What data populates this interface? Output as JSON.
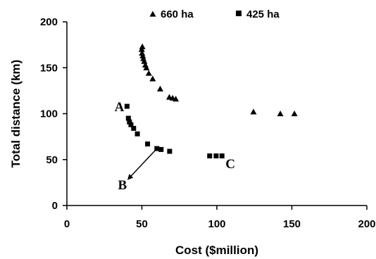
{
  "chart_data": {
    "type": "scatter",
    "title": "",
    "xlabel": "Cost ($million)",
    "ylabel": "Total distance (km)",
    "xlim": [
      0,
      200
    ],
    "ylim": [
      0,
      200
    ],
    "xticks": [
      0,
      50,
      100,
      150,
      200
    ],
    "yticks": [
      0,
      50,
      100,
      150,
      200
    ],
    "grid": false,
    "legend_position": "top",
    "series": [
      {
        "name": "660 ha",
        "marker": "triangle",
        "color": "#000000",
        "points": [
          [
            50.3,
            173
          ],
          [
            49.9,
            170
          ],
          [
            50.1,
            166
          ],
          [
            50.6,
            163
          ],
          [
            51.0,
            160
          ],
          [
            51.6,
            157
          ],
          [
            52.3,
            153
          ],
          [
            53.0,
            150
          ],
          [
            54.6,
            144
          ],
          [
            57.2,
            138
          ],
          [
            62.2,
            127
          ],
          [
            68.3,
            118
          ],
          [
            70.5,
            117
          ],
          [
            72.6,
            116
          ],
          [
            124.4,
            102
          ],
          [
            142.3,
            100
          ],
          [
            151.7,
            100
          ]
        ]
      },
      {
        "name": "425 ha",
        "marker": "square",
        "color": "#000000",
        "points": [
          [
            40.1,
            108
          ],
          [
            41.0,
            95
          ],
          [
            41.7,
            91
          ],
          [
            42.7,
            88
          ],
          [
            44.5,
            84
          ],
          [
            47.0,
            78
          ],
          [
            53.8,
            67
          ],
          [
            60.0,
            62
          ],
          [
            62.8,
            61
          ],
          [
            68.5,
            59
          ],
          [
            95.2,
            54
          ],
          [
            99.5,
            54
          ],
          [
            103.4,
            54
          ]
        ]
      }
    ],
    "annotations": [
      {
        "text": "A",
        "x": 35,
        "y": 108
      },
      {
        "text": "B",
        "x": 37,
        "y": 23
      },
      {
        "text": "C",
        "x": 109,
        "y": 46
      }
    ],
    "arrow": {
      "from": [
        60,
        62
      ],
      "to": [
        41,
        29
      ]
    }
  }
}
